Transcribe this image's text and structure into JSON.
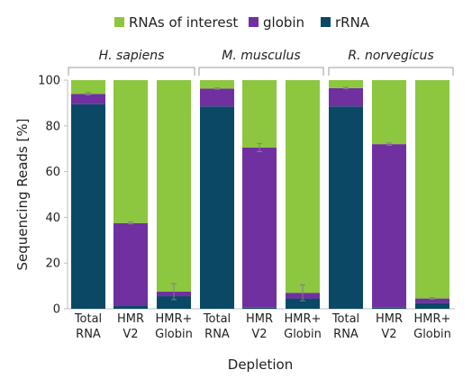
{
  "chart_data": {
    "type": "bar",
    "stacked": true,
    "xlabel": "Depletion",
    "ylabel": "Sequencing Reads [%]",
    "ylim": [
      0,
      100
    ],
    "yticks": [
      0,
      20,
      40,
      60,
      80,
      100
    ],
    "legend_position": "top",
    "groups": [
      {
        "name": "H. sapiens",
        "categories": [
          "Total RNA",
          "HMR V2",
          "HMR+ Globin"
        ]
      },
      {
        "name": "M. musculus",
        "categories": [
          "Total RNA",
          "HMR V2",
          "HMR+ Globin"
        ]
      },
      {
        "name": "R. norvegicus",
        "categories": [
          "Total RNA",
          "HMR V2",
          "HMR+ Globin"
        ]
      }
    ],
    "category_lines": [
      [
        "Total",
        "RNA"
      ],
      [
        "HMR",
        "V2"
      ],
      [
        "HMR+",
        "Globin"
      ]
    ],
    "series": [
      {
        "name": "rRNA",
        "color": "#0b4866",
        "values": [
          89.5,
          1.5,
          5.5,
          88.5,
          0.5,
          4.5,
          88.5,
          0.5,
          2.5
        ]
      },
      {
        "name": "globin",
        "color": "#7030a0",
        "values": [
          4.5,
          36.0,
          2.0,
          7.8,
          70.0,
          2.5,
          8.0,
          71.5,
          2.0
        ]
      },
      {
        "name": "RNAs of interest",
        "color": "#8dc63f",
        "values": [
          6.0,
          62.5,
          92.5,
          3.7,
          29.5,
          93.0,
          3.5,
          28.0,
          95.5
        ]
      }
    ],
    "error_bars": [
      {
        "top": 94.0,
        "err": 0.5
      },
      {
        "top": 37.5,
        "err": 0.4
      },
      {
        "top": 7.5,
        "err": 3.5
      },
      {
        "top": 96.3,
        "err": 0.3
      },
      {
        "top": 70.5,
        "err": 1.8
      },
      {
        "top": 7.0,
        "err": 3.5
      },
      {
        "top": 96.5,
        "err": 0.3
      },
      {
        "top": 72.0,
        "err": 0.5
      },
      {
        "top": 4.5,
        "err": 0.3
      }
    ]
  },
  "legend": [
    {
      "label": "RNAs of interest",
      "color": "#8dc63f"
    },
    {
      "label": "globin",
      "color": "#7030a0"
    },
    {
      "label": "rRNA",
      "color": "#0b4866"
    }
  ]
}
